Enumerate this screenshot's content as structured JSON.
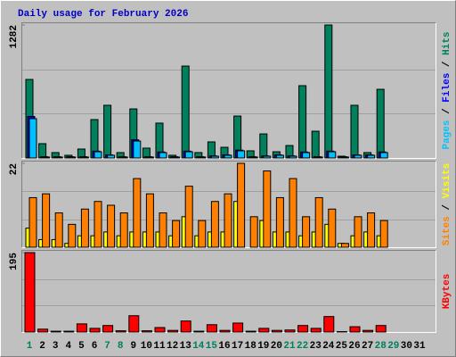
{
  "chart_data": [
    {
      "type": "bar",
      "title": "Daily usage for February 2026",
      "ylim": [
        0,
        1282
      ],
      "yticks": [
        1282
      ],
      "series": [
        {
          "name": "Hits",
          "color": "#00805c",
          "values": [
            757,
            138,
            52,
            26,
            86,
            370,
            508,
            52,
            473,
            95,
            336,
            26,
            886,
            52,
            155,
            103,
            404,
            69,
            232,
            60,
            120,
            697,
            258,
            1282,
            17,
            508,
            52,
            662,
            null,
            null,
            null
          ]
        },
        {
          "name": "Files",
          "color": "#0000ff",
          "values": [
            400,
            12,
            12,
            12,
            12,
            66,
            30,
            12,
            175,
            12,
            58,
            12,
            66,
            12,
            20,
            30,
            76,
            12,
            20,
            30,
            20,
            58,
            12,
            66,
            12,
            30,
            30,
            58,
            null,
            null,
            null
          ]
        },
        {
          "name": "Pages",
          "color": "#00c0ff",
          "values": [
            379,
            9,
            9,
            9,
            9,
            60,
            26,
            9,
            163,
            9,
            52,
            9,
            60,
            9,
            17,
            26,
            69,
            9,
            17,
            26,
            17,
            52,
            9,
            60,
            9,
            26,
            26,
            52,
            null,
            null,
            null
          ]
        }
      ]
    },
    {
      "type": "bar",
      "ylim": [
        0,
        22
      ],
      "yticks": [
        22
      ],
      "series": [
        {
          "name": "Visits",
          "color": "#ffff00",
          "values": [
            5,
            2,
            2,
            1,
            3,
            3,
            4,
            3,
            4,
            4,
            4,
            3,
            8,
            3,
            4,
            4,
            12,
            null,
            7,
            4,
            4,
            3,
            4,
            6,
            1,
            3,
            4,
            3,
            null,
            null,
            null
          ]
        },
        {
          "name": "Sites",
          "color": "#ff8000",
          "values": [
            13,
            14,
            9,
            6,
            10,
            12,
            11,
            9,
            18,
            14,
            9,
            7,
            16,
            7,
            12,
            14,
            22,
            8,
            20,
            13,
            18,
            8,
            13,
            10,
            1,
            8,
            9,
            7,
            null,
            null,
            null
          ]
        }
      ]
    },
    {
      "type": "bar",
      "ylim": [
        0,
        195
      ],
      "yticks": [
        195
      ],
      "categories": [
        "1",
        "2",
        "3",
        "4",
        "5",
        "6",
        "7",
        "8",
        "9",
        "10",
        "11",
        "12",
        "13",
        "14",
        "15",
        "16",
        "17",
        "18",
        "19",
        "20",
        "21",
        "22",
        "23",
        "24",
        "25",
        "26",
        "27",
        "28",
        "29",
        "30",
        "31"
      ],
      "highlight_categories": [
        0,
        6,
        7,
        13,
        14,
        20,
        21,
        27,
        28
      ],
      "highlight_color": "#00805c",
      "series": [
        {
          "name": "KBytes",
          "color": "#ff0000",
          "values": [
            195,
            7,
            2,
            2,
            20,
            9,
            16,
            3,
            40,
            3,
            11,
            4,
            27,
            2,
            18,
            4,
            22,
            2,
            9,
            4,
            5,
            16,
            9,
            38,
            1,
            13,
            4,
            16,
            null,
            null,
            null
          ]
        }
      ]
    }
  ]
}
